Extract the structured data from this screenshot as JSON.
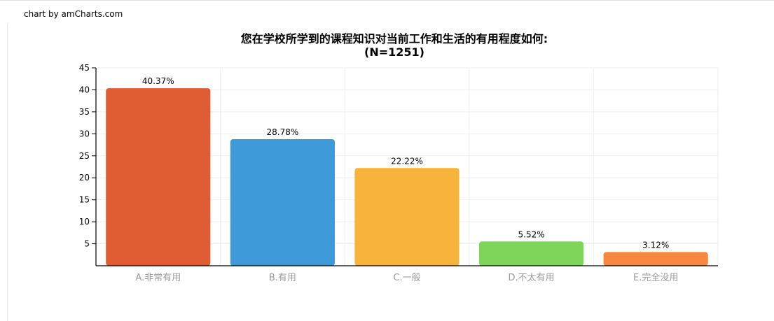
{
  "credit": "chart by amCharts.com",
  "chart_data": {
    "type": "bar",
    "title": "您在学校所学到的课程知识对当前工作和生活的有用程度如何:",
    "subtitle": "(N=1251)",
    "categories": [
      "A.非常有用",
      "B.有用",
      "C.一般",
      "D.不太有用",
      "E.完全没用"
    ],
    "values": [
      40.37,
      28.78,
      22.22,
      5.52,
      3.12
    ],
    "data_labels": [
      "40.37%",
      "28.78%",
      "22.22%",
      "5.52%",
      "3.12%"
    ],
    "colors": [
      "#e05c32",
      "#3e9ad8",
      "#f7b33a",
      "#7fd55a",
      "#f7873e"
    ],
    "ylim": [
      0,
      45
    ],
    "yticks": [
      5,
      10,
      15,
      20,
      25,
      30,
      35,
      40,
      45
    ],
    "grid": true,
    "xlabel": "",
    "ylabel": ""
  }
}
